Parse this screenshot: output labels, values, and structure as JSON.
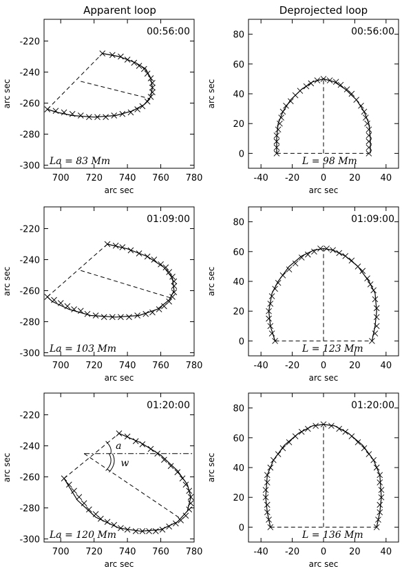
{
  "column_titles": [
    "Apparent loop",
    "Deprojected loop"
  ],
  "chart_data": [
    {
      "type": "line",
      "panel": "apparent",
      "time": "00:56:00",
      "length_label": "La = 83 Mm",
      "xlabel": "arc sec",
      "ylabel": "arc sec",
      "xlim": [
        690,
        780
      ],
      "ylim": [
        -302,
        -206
      ],
      "xticks": [
        700,
        720,
        740,
        760,
        780
      ],
      "yticks": [
        -300,
        -280,
        -260,
        -240,
        -220
      ],
      "loop": [
        [
          725,
          -228
        ],
        [
          735,
          -230
        ],
        [
          745,
          -234
        ],
        [
          751,
          -238
        ],
        [
          754,
          -244
        ],
        [
          755,
          -250
        ],
        [
          754,
          -256
        ],
        [
          750,
          -261
        ],
        [
          743,
          -265
        ],
        [
          733,
          -268
        ],
        [
          720,
          -269
        ],
        [
          707,
          -268
        ],
        [
          698,
          -266
        ],
        [
          692,
          -264
        ]
      ],
      "markers": [
        [
          692,
          -264
        ],
        [
          697,
          -265
        ],
        [
          702,
          -266
        ],
        [
          707,
          -267
        ],
        [
          712,
          -268
        ],
        [
          717,
          -269
        ],
        [
          722,
          -269
        ],
        [
          727,
          -269
        ],
        [
          732,
          -268
        ],
        [
          737,
          -267
        ],
        [
          742,
          -266
        ],
        [
          746,
          -264
        ],
        [
          749,
          -262
        ],
        [
          752,
          -259
        ],
        [
          754,
          -256
        ],
        [
          755,
          -253
        ],
        [
          755,
          -250
        ],
        [
          755,
          -247
        ],
        [
          754,
          -244
        ],
        [
          752,
          -241
        ],
        [
          750,
          -238
        ],
        [
          747,
          -236
        ],
        [
          744,
          -234
        ],
        [
          740,
          -232
        ],
        [
          736,
          -230
        ],
        [
          731,
          -229
        ],
        [
          725,
          -228
        ]
      ],
      "chord": [
        [
          692,
          -264
        ],
        [
          725,
          -228
        ]
      ],
      "height_line": [
        [
          712,
          -246
        ],
        [
          753,
          -257
        ]
      ]
    },
    {
      "type": "line",
      "panel": "deprojected",
      "time": "00:56:00",
      "length_label": "L = 98 Mm",
      "xlabel": "arc sec",
      "ylabel": "arc sec",
      "xlim": [
        -48,
        48
      ],
      "ylim": [
        -10,
        90
      ],
      "xticks": [
        -40,
        -20,
        0,
        20,
        40
      ],
      "yticks": [
        0,
        20,
        40,
        60,
        80
      ],
      "loop": [
        [
          -30,
          0
        ],
        [
          -30,
          10
        ],
        [
          -29,
          20
        ],
        [
          -26,
          28
        ],
        [
          -21,
          36
        ],
        [
          -14,
          43
        ],
        [
          -7,
          48
        ],
        [
          0,
          50
        ],
        [
          7,
          48
        ],
        [
          14,
          43
        ],
        [
          21,
          36
        ],
        [
          26,
          28
        ],
        [
          29,
          20
        ],
        [
          30,
          10
        ],
        [
          30,
          0
        ]
      ],
      "markers": [
        [
          -30,
          0
        ],
        [
          -30,
          4
        ],
        [
          -30,
          8
        ],
        [
          -30,
          12
        ],
        [
          -29,
          16
        ],
        [
          -28,
          20
        ],
        [
          -27,
          24
        ],
        [
          -26,
          28
        ],
        [
          -24,
          32
        ],
        [
          -21,
          35
        ],
        [
          -18,
          39
        ],
        [
          -15,
          42
        ],
        [
          -11,
          45
        ],
        [
          -8,
          47
        ],
        [
          -4,
          49
        ],
        [
          0,
          50
        ],
        [
          4,
          49
        ],
        [
          8,
          48
        ],
        [
          11,
          46
        ],
        [
          15,
          43
        ],
        [
          18,
          40
        ],
        [
          21,
          36
        ],
        [
          24,
          32
        ],
        [
          26,
          28
        ],
        [
          27,
          24
        ],
        [
          28,
          20
        ],
        [
          29,
          16
        ],
        [
          29,
          12
        ],
        [
          29,
          8
        ],
        [
          29,
          4
        ],
        [
          29,
          0
        ]
      ],
      "baseline": [
        [
          -30,
          0
        ],
        [
          29,
          0
        ]
      ],
      "height_line": [
        [
          0,
          0
        ],
        [
          0,
          50
        ]
      ]
    },
    {
      "type": "line",
      "panel": "apparent",
      "time": "01:09:00",
      "length_label": "La = 103 Mm",
      "xlabel": "arc sec",
      "ylabel": "arc sec",
      "xlim": [
        690,
        780
      ],
      "ylim": [
        -302,
        -206
      ],
      "xticks": [
        700,
        720,
        740,
        760,
        780
      ],
      "yticks": [
        -300,
        -280,
        -260,
        -240,
        -220
      ],
      "loop": [
        [
          728,
          -230
        ],
        [
          740,
          -233
        ],
        [
          752,
          -238
        ],
        [
          762,
          -245
        ],
        [
          767,
          -252
        ],
        [
          768,
          -260
        ],
        [
          765,
          -266
        ],
        [
          758,
          -272
        ],
        [
          747,
          -276
        ],
        [
          733,
          -277
        ],
        [
          718,
          -276
        ],
        [
          705,
          -272
        ],
        [
          695,
          -267
        ],
        [
          692,
          -264
        ]
      ],
      "markers": [
        [
          692,
          -264
        ],
        [
          696,
          -266
        ],
        [
          700,
          -268
        ],
        [
          704,
          -270
        ],
        [
          708,
          -272
        ],
        [
          712,
          -273
        ],
        [
          716,
          -275
        ],
        [
          721,
          -276
        ],
        [
          726,
          -277
        ],
        [
          731,
          -277
        ],
        [
          736,
          -277
        ],
        [
          741,
          -277
        ],
        [
          746,
          -276
        ],
        [
          751,
          -275
        ],
        [
          755,
          -274
        ],
        [
          759,
          -272
        ],
        [
          762,
          -270
        ],
        [
          765,
          -267
        ],
        [
          767,
          -264
        ],
        [
          768,
          -261
        ],
        [
          768,
          -257
        ],
        [
          768,
          -254
        ],
        [
          767,
          -251
        ],
        [
          765,
          -248
        ],
        [
          763,
          -245
        ],
        [
          760,
          -243
        ],
        [
          756,
          -240
        ],
        [
          752,
          -238
        ],
        [
          747,
          -236
        ],
        [
          742,
          -234
        ],
        [
          737,
          -232
        ],
        [
          733,
          -231
        ],
        [
          728,
          -230
        ]
      ],
      "chord": [
        [
          692,
          -264
        ],
        [
          728,
          -230
        ]
      ],
      "height_line": [
        [
          712,
          -247
        ],
        [
          767,
          -265
        ]
      ]
    },
    {
      "type": "line",
      "panel": "deprojected",
      "time": "01:09:00",
      "length_label": "L = 123 Mm",
      "xlabel": "arc sec",
      "ylabel": "arc sec",
      "xlim": [
        -48,
        48
      ],
      "ylim": [
        -10,
        90
      ],
      "xticks": [
        -40,
        -20,
        0,
        20,
        40
      ],
      "yticks": [
        0,
        20,
        40,
        60,
        80
      ],
      "loop": [
        [
          -31,
          0
        ],
        [
          -34,
          10
        ],
        [
          -35,
          20
        ],
        [
          -33,
          32
        ],
        [
          -29,
          40
        ],
        [
          -22,
          50
        ],
        [
          -14,
          57
        ],
        [
          -6,
          61
        ],
        [
          0,
          62
        ],
        [
          6,
          61
        ],
        [
          14,
          57
        ],
        [
          22,
          50
        ],
        [
          29,
          40
        ],
        [
          33,
          32
        ],
        [
          34,
          20
        ],
        [
          33,
          10
        ],
        [
          31,
          0
        ]
      ],
      "markers": [
        [
          -31,
          0
        ],
        [
          -33,
          5
        ],
        [
          -34,
          10
        ],
        [
          -35,
          15
        ],
        [
          -35,
          20
        ],
        [
          -34,
          25
        ],
        [
          -33,
          30
        ],
        [
          -31,
          35
        ],
        [
          -29,
          39
        ],
        [
          -26,
          44
        ],
        [
          -22,
          48
        ],
        [
          -18,
          52
        ],
        [
          -14,
          56
        ],
        [
          -10,
          58
        ],
        [
          -6,
          60
        ],
        [
          -2,
          62
        ],
        [
          2,
          62
        ],
        [
          6,
          61
        ],
        [
          10,
          59
        ],
        [
          14,
          57
        ],
        [
          18,
          54
        ],
        [
          22,
          50
        ],
        [
          25,
          47
        ],
        [
          28,
          42
        ],
        [
          30,
          38
        ],
        [
          32,
          34
        ],
        [
          33,
          28
        ],
        [
          34,
          22
        ],
        [
          34,
          16
        ],
        [
          34,
          10
        ],
        [
          33,
          5
        ],
        [
          31,
          0
        ]
      ],
      "baseline": [
        [
          -31,
          0
        ],
        [
          31,
          0
        ]
      ],
      "height_line": [
        [
          0,
          0
        ],
        [
          0,
          62
        ]
      ]
    },
    {
      "type": "line",
      "panel": "apparent",
      "time": "01:20:00",
      "length_label": "La = 120 Mm",
      "angle_labels": [
        "a",
        "w"
      ],
      "xlabel": "arc sec",
      "ylabel": "arc sec",
      "xlim": [
        690,
        780
      ],
      "ylim": [
        -302,
        -206
      ],
      "xticks": [
        700,
        720,
        740,
        760,
        780
      ],
      "yticks": [
        -300,
        -280,
        -260,
        -240,
        -220
      ],
      "loop": [
        [
          735,
          -232
        ],
        [
          748,
          -238
        ],
        [
          760,
          -246
        ],
        [
          770,
          -256
        ],
        [
          776,
          -265
        ],
        [
          778,
          -273
        ],
        [
          776,
          -282
        ],
        [
          770,
          -289
        ],
        [
          760,
          -294
        ],
        [
          748,
          -295
        ],
        [
          735,
          -293
        ],
        [
          721,
          -286
        ],
        [
          710,
          -275
        ],
        [
          702,
          -261
        ]
      ],
      "markers": [
        [
          702,
          -261
        ],
        [
          705,
          -265
        ],
        [
          708,
          -269
        ],
        [
          711,
          -273
        ],
        [
          714,
          -277
        ],
        [
          717,
          -281
        ],
        [
          721,
          -284
        ],
        [
          724,
          -287
        ],
        [
          728,
          -289
        ],
        [
          732,
          -291
        ],
        [
          736,
          -293
        ],
        [
          740,
          -294
        ],
        [
          745,
          -295
        ],
        [
          749,
          -295
        ],
        [
          753,
          -295
        ],
        [
          757,
          -295
        ],
        [
          761,
          -294
        ],
        [
          765,
          -292
        ],
        [
          769,
          -290
        ],
        [
          772,
          -288
        ],
        [
          775,
          -285
        ],
        [
          777,
          -281
        ],
        [
          778,
          -277
        ],
        [
          778,
          -273
        ],
        [
          777,
          -269
        ],
        [
          775,
          -265
        ],
        [
          773,
          -261
        ],
        [
          770,
          -257
        ],
        [
          766,
          -253
        ],
        [
          762,
          -249
        ],
        [
          758,
          -245
        ],
        [
          754,
          -242
        ],
        [
          749,
          -239
        ],
        [
          745,
          -237
        ],
        [
          740,
          -234
        ],
        [
          735,
          -232
        ]
      ],
      "chord": [
        [
          702,
          -261
        ],
        [
          735,
          -232
        ]
      ],
      "height_line": [
        [
          714,
          -245
        ],
        [
          772,
          -287
        ]
      ],
      "horizontal_line": [
        [
          714,
          -245
        ],
        [
          780,
          -245
        ]
      ]
    },
    {
      "type": "line",
      "panel": "deprojected",
      "time": "01:20:00",
      "length_label": "L = 136 Mm",
      "xlabel": "arc sec",
      "ylabel": "arc sec",
      "xlim": [
        -48,
        48
      ],
      "ylim": [
        -10,
        90
      ],
      "xticks": [
        -40,
        -20,
        0,
        20,
        40
      ],
      "yticks": [
        0,
        20,
        40,
        60,
        80
      ],
      "loop": [
        [
          -34,
          0
        ],
        [
          -36,
          10
        ],
        [
          -37,
          20
        ],
        [
          -36,
          35
        ],
        [
          -32,
          45
        ],
        [
          -25,
          55
        ],
        [
          -16,
          63
        ],
        [
          -7,
          68
        ],
        [
          0,
          69
        ],
        [
          7,
          68
        ],
        [
          16,
          63
        ],
        [
          25,
          55
        ],
        [
          32,
          45
        ],
        [
          36,
          35
        ],
        [
          37,
          20
        ],
        [
          36,
          10
        ],
        [
          34,
          0
        ]
      ],
      "markers": [
        [
          -34,
          0
        ],
        [
          -35,
          5
        ],
        [
          -36,
          10
        ],
        [
          -36,
          15
        ],
        [
          -37,
          20
        ],
        [
          -37,
          25
        ],
        [
          -36,
          30
        ],
        [
          -36,
          35
        ],
        [
          -34,
          40
        ],
        [
          -32,
          45
        ],
        [
          -29,
          49
        ],
        [
          -26,
          53
        ],
        [
          -22,
          57
        ],
        [
          -18,
          61
        ],
        [
          -14,
          64
        ],
        [
          -10,
          66
        ],
        [
          -5,
          68
        ],
        [
          0,
          69
        ],
        [
          5,
          68
        ],
        [
          10,
          66
        ],
        [
          14,
          64
        ],
        [
          18,
          61
        ],
        [
          22,
          57
        ],
        [
          26,
          53
        ],
        [
          29,
          49
        ],
        [
          32,
          45
        ],
        [
          34,
          40
        ],
        [
          36,
          35
        ],
        [
          36,
          30
        ],
        [
          37,
          25
        ],
        [
          37,
          20
        ],
        [
          36,
          15
        ],
        [
          36,
          10
        ],
        [
          35,
          5
        ],
        [
          34,
          0
        ]
      ],
      "baseline": [
        [
          -34,
          0
        ],
        [
          34,
          0
        ]
      ],
      "height_line": [
        [
          0,
          0
        ],
        [
          0,
          69
        ]
      ]
    }
  ]
}
